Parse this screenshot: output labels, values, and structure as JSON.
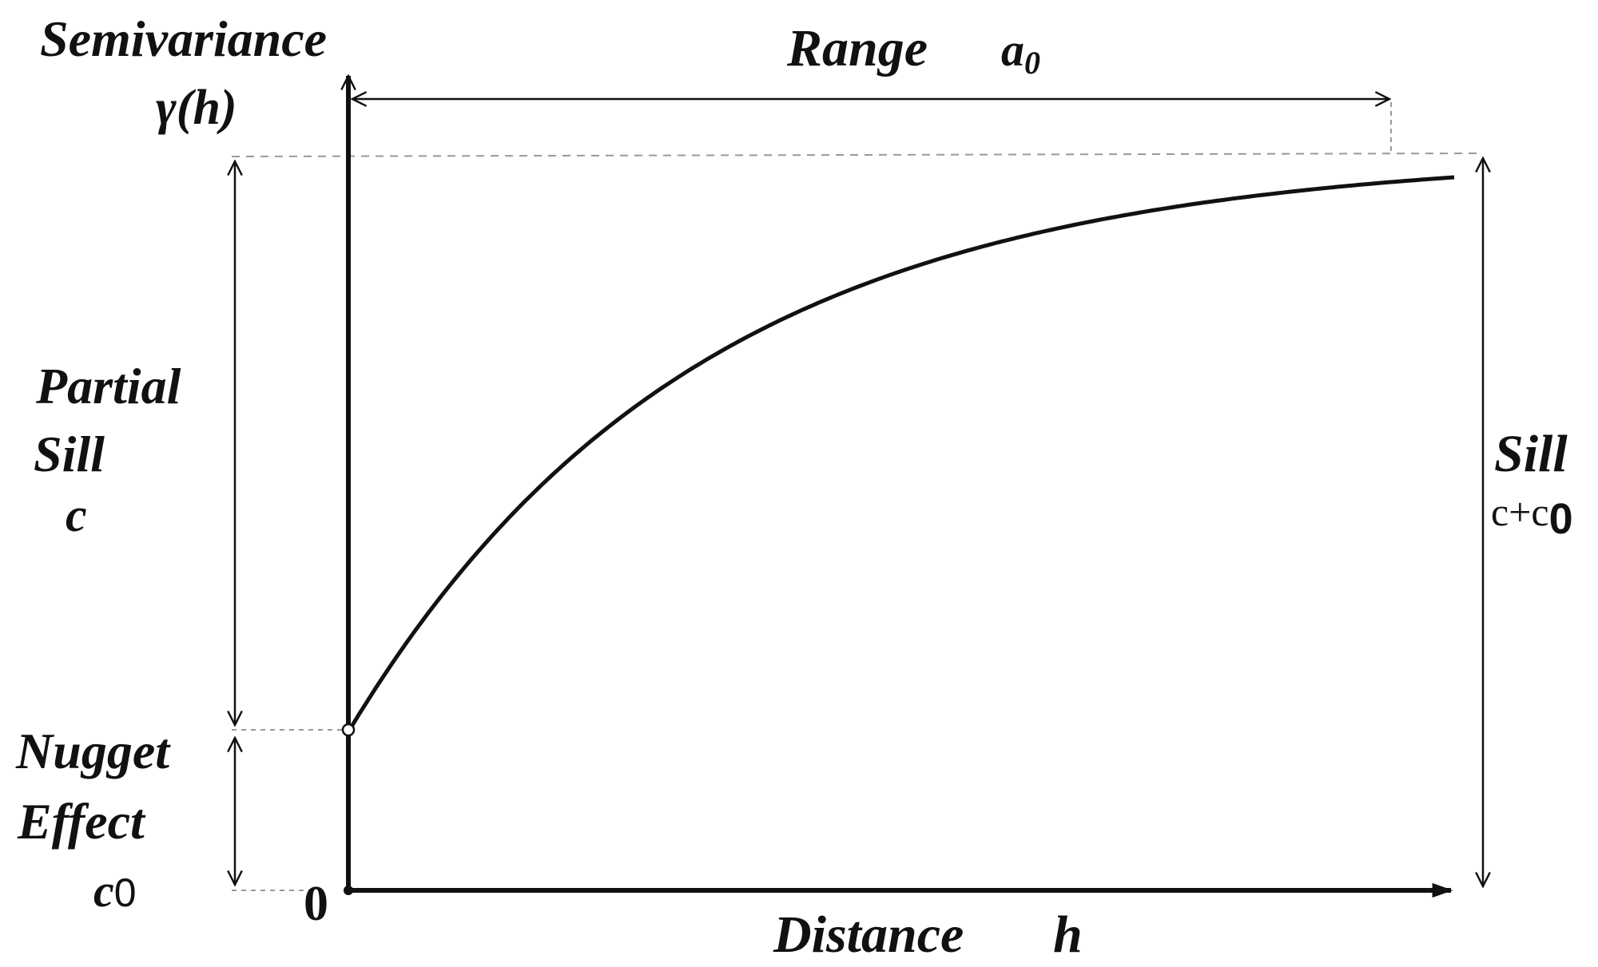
{
  "labels": {
    "y_axis_1": "Semivariance",
    "y_axis_2": "γ(h)",
    "range": "Range",
    "range_sym": "a",
    "range_sub": "0",
    "partial_sill_1": "Partial",
    "partial_sill_2": "Sill",
    "partial_sill_3": "c",
    "nugget_1": "Nugget",
    "nugget_2": "Effect",
    "nugget_sym": "c",
    "nugget_sub": "0",
    "sill_1": "Sill",
    "sill_2": "c+c",
    "sill_sub": "0",
    "origin": "0",
    "x_axis": "Distance",
    "x_axis_sym": "h"
  },
  "model": {
    "type": "exponential semivariogram",
    "nugget": 0.215,
    "sill": 1.0,
    "range_fraction_of_axis": 0.945
  },
  "colors": {
    "ink": "#111111",
    "guide": "#999999"
  }
}
